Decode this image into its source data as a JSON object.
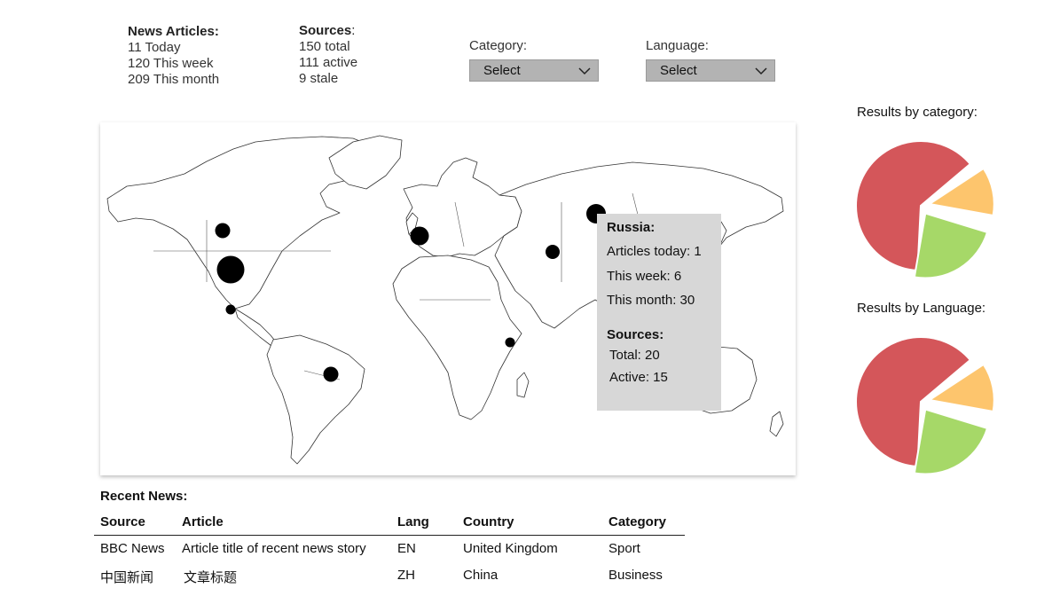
{
  "stats": {
    "articles": {
      "title": "News Articles:",
      "lines": [
        "11 Today",
        "120 This week",
        "209 This month"
      ]
    },
    "sources": {
      "title": "Sources",
      "title_suffix": ":",
      "lines": [
        "150 total",
        "111 active",
        "9 stale"
      ]
    }
  },
  "filters": {
    "category": {
      "label": "Category:",
      "value": "Select"
    },
    "language": {
      "label": "Language:",
      "value": "Select"
    }
  },
  "map": {
    "tooltip": {
      "country": "Russia:",
      "articles_today": "Articles today: 1",
      "this_week": "This week: 6",
      "this_month": "This month: 30",
      "sources_title": "Sources:",
      "total": "Total: 20",
      "active": "Active: 15"
    }
  },
  "pies": {
    "category_title": "Results by category:",
    "language_title": "Results by Language:",
    "slice_colors": [
      "#d4565a",
      "#fdc56d",
      "#a6d868"
    ],
    "category_fractions": [
      0.58,
      0.12,
      0.22
    ],
    "language_fractions": [
      0.58,
      0.12,
      0.22
    ]
  },
  "recent": {
    "title": "Recent News:",
    "headers": [
      "Source",
      "Article",
      "Lang",
      "Country",
      "Category"
    ],
    "rows": [
      [
        "BBC News",
        "Article title of recent news story",
        "EN",
        "United Kingdom",
        "Sport"
      ],
      [
        "中国新闻",
        "文章标题",
        "ZH",
        "China",
        "Business"
      ]
    ]
  }
}
